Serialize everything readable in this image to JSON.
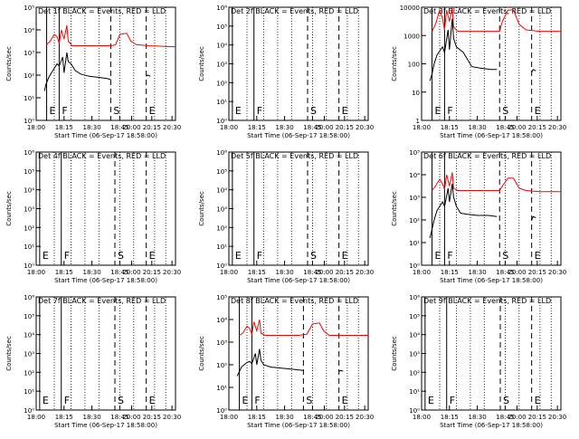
{
  "chart_data": {
    "type": "line",
    "series_colors": {
      "events": "#000000",
      "lld": "#ff0000"
    },
    "xtick_labels": [
      "18:00",
      "18:15",
      "18:30",
      "18:45",
      "20:00",
      "20:15",
      "20:30"
    ],
    "xlabel": "Start Time (06-Sep-17 18:58:00)",
    "ylabel": "Counts/sec",
    "marker_labels": {
      "E": "E",
      "F": "F",
      "S": "S"
    },
    "panels": [
      {
        "title": "Det 1f BLACK = Events, RED = LLD",
        "ylabel": "Counts/sec",
        "xlabel": "Start Time (06-Sep-17 18:58:00)",
        "ylog": [
          0,
          5
        ],
        "ytick_labels": [
          "10⁰",
          "10¹",
          "10²",
          "10³",
          "10⁴",
          "10⁵"
        ],
        "markers": [
          {
            "x": 0.075,
            "label": "E"
          },
          {
            "x": 0.165,
            "label": "F"
          },
          {
            "x": 0.535,
            "label": "S"
          },
          {
            "x": 0.79,
            "label": "E"
          }
        ],
        "events": [
          [
            0.06,
            1.3
          ],
          [
            0.07,
            1.6
          ],
          [
            0.09,
            1.9
          ],
          [
            0.11,
            2.1
          ],
          [
            0.13,
            2.3
          ],
          [
            0.15,
            2.5
          ],
          [
            0.165,
            2.4
          ],
          [
            0.19,
            2.8
          ],
          [
            0.2,
            2.1
          ],
          [
            0.22,
            3.0
          ],
          [
            0.23,
            2.6
          ],
          [
            0.25,
            2.5
          ],
          [
            0.28,
            2.2
          ],
          [
            0.32,
            2.05
          ],
          [
            0.38,
            1.95
          ],
          [
            0.45,
            1.9
          ],
          [
            0.51,
            1.85
          ],
          [
            0.535,
            1.8
          ]
        ],
        "events2": [
          [
            0.79,
            1.95
          ],
          [
            0.8,
            2.0
          ],
          [
            0.82,
            1.95
          ]
        ],
        "lld": [
          [
            0.075,
            3.35
          ],
          [
            0.1,
            3.5
          ],
          [
            0.13,
            3.8
          ],
          [
            0.15,
            3.7
          ],
          [
            0.165,
            3.4
          ],
          [
            0.18,
            4.0
          ],
          [
            0.2,
            3.6
          ],
          [
            0.22,
            4.2
          ],
          [
            0.23,
            3.5
          ],
          [
            0.26,
            3.3
          ],
          [
            0.4,
            3.3
          ],
          [
            0.5,
            3.3
          ],
          [
            0.54,
            3.3
          ],
          [
            0.57,
            3.35
          ],
          [
            0.6,
            3.8
          ],
          [
            0.65,
            3.85
          ],
          [
            0.68,
            3.5
          ],
          [
            0.72,
            3.35
          ],
          [
            0.8,
            3.3
          ],
          [
            1.0,
            3.25
          ]
        ]
      },
      {
        "title": "Det 2f BLACK = Events, RED = LLD",
        "ylabel": "Counts/sec",
        "xlabel": "Start Time (06-Sep-17 18:58:00)",
        "ylog": [
          0,
          6
        ],
        "ytick_labels": [
          "10⁰",
          "10¹",
          "10²",
          "10³",
          "10⁴",
          "10⁵",
          "10⁶"
        ],
        "markers": [
          {
            "x": 0.025,
            "label": "E"
          },
          {
            "x": 0.18,
            "label": "F"
          },
          {
            "x": 0.565,
            "label": "S"
          },
          {
            "x": 0.79,
            "label": "E"
          }
        ],
        "events": [],
        "events2": [],
        "lld": []
      },
      {
        "title": "Det 3f BLACK = Events, RED = LLD",
        "ylabel": "Counts/sec",
        "xlabel": "Start Time (06-Sep-17 18:58:00)",
        "ylog": [
          0,
          4
        ],
        "ytick_labels": [
          "1",
          "10",
          "100",
          "1000",
          "10000"
        ],
        "markers": [
          {
            "x": 0.075,
            "label": "E"
          },
          {
            "x": 0.165,
            "label": "F"
          },
          {
            "x": 0.56,
            "label": "S"
          },
          {
            "x": 0.79,
            "label": "E"
          }
        ],
        "events": [
          [
            0.06,
            1.4
          ],
          [
            0.075,
            1.65
          ],
          [
            0.09,
            2.0
          ],
          [
            0.11,
            2.3
          ],
          [
            0.13,
            2.45
          ],
          [
            0.15,
            2.6
          ],
          [
            0.165,
            2.4
          ],
          [
            0.19,
            3.2
          ],
          [
            0.2,
            2.5
          ],
          [
            0.22,
            3.6
          ],
          [
            0.23,
            2.9
          ],
          [
            0.25,
            2.6
          ],
          [
            0.3,
            2.4
          ],
          [
            0.36,
            1.9
          ],
          [
            0.42,
            1.85
          ],
          [
            0.5,
            1.8
          ],
          [
            0.54,
            1.8
          ]
        ],
        "events2": [
          [
            0.79,
            1.7
          ],
          [
            0.8,
            1.8
          ],
          [
            0.82,
            1.75
          ]
        ],
        "lld": [
          [
            0.075,
            3.15
          ],
          [
            0.1,
            3.4
          ],
          [
            0.13,
            3.9
          ],
          [
            0.15,
            3.6
          ],
          [
            0.165,
            3.2
          ],
          [
            0.18,
            3.9
          ],
          [
            0.2,
            3.5
          ],
          [
            0.22,
            4.0
          ],
          [
            0.23,
            3.3
          ],
          [
            0.26,
            3.15
          ],
          [
            0.45,
            3.15
          ],
          [
            0.56,
            3.15
          ],
          [
            0.58,
            3.5
          ],
          [
            0.62,
            3.9
          ],
          [
            0.66,
            3.9
          ],
          [
            0.7,
            3.4
          ],
          [
            0.75,
            3.2
          ],
          [
            0.85,
            3.15
          ],
          [
            1.0,
            3.15
          ]
        ]
      },
      {
        "title": "Det 4f BLACK = Events, RED = LLD",
        "ylabel": "Counts/sec",
        "xlabel": "Start Time (06-Sep-17 18:58:00)",
        "ylog": [
          0,
          6
        ],
        "ytick_labels": [
          "10⁰",
          "10¹",
          "10²",
          "10³",
          "10⁴",
          "10⁵",
          "10⁶"
        ],
        "markers": [
          {
            "x": 0.025,
            "label": "E"
          },
          {
            "x": 0.18,
            "label": "F"
          },
          {
            "x": 0.565,
            "label": "S"
          },
          {
            "x": 0.79,
            "label": "E"
          }
        ],
        "events": [],
        "events2": [],
        "lld": []
      },
      {
        "title": "Det 5f BLACK = Events, RED = LLD",
        "ylabel": "Counts/sec",
        "xlabel": "Start Time (06-Sep-17 18:58:00)",
        "ylog": [
          0,
          6
        ],
        "ytick_labels": [
          "10⁰",
          "10¹",
          "10²",
          "10³",
          "10⁴",
          "10⁵",
          "10⁶"
        ],
        "markers": [
          {
            "x": 0.025,
            "label": "E"
          },
          {
            "x": 0.18,
            "label": "F"
          },
          {
            "x": 0.565,
            "label": "S"
          },
          {
            "x": 0.79,
            "label": "E"
          }
        ],
        "events": [],
        "events2": [],
        "lld": []
      },
      {
        "title": "Det 6f BLACK = Events, RED = LLD",
        "ylabel": "Counts/sec",
        "xlabel": "Start Time (06-Sep-17 18:58:00)",
        "ylog": [
          0,
          5
        ],
        "ytick_labels": [
          "10⁰",
          "10¹",
          "10²",
          "10³",
          "10⁴",
          "10⁵"
        ],
        "markers": [
          {
            "x": 0.075,
            "label": "E"
          },
          {
            "x": 0.165,
            "label": "F"
          },
          {
            "x": 0.56,
            "label": "S"
          },
          {
            "x": 0.79,
            "label": "E"
          }
        ],
        "events": [
          [
            0.06,
            1.2
          ],
          [
            0.075,
            1.6
          ],
          [
            0.09,
            2.0
          ],
          [
            0.11,
            2.4
          ],
          [
            0.13,
            2.6
          ],
          [
            0.15,
            2.8
          ],
          [
            0.165,
            2.6
          ],
          [
            0.19,
            3.4
          ],
          [
            0.2,
            2.8
          ],
          [
            0.22,
            3.6
          ],
          [
            0.23,
            3.0
          ],
          [
            0.25,
            2.6
          ],
          [
            0.28,
            2.3
          ],
          [
            0.33,
            2.25
          ],
          [
            0.4,
            2.2
          ],
          [
            0.48,
            2.2
          ],
          [
            0.54,
            2.15
          ]
        ],
        "events2": [
          [
            0.79,
            2.0
          ],
          [
            0.8,
            2.15
          ],
          [
            0.82,
            2.1
          ]
        ],
        "lld": [
          [
            0.075,
            3.3
          ],
          [
            0.1,
            3.5
          ],
          [
            0.13,
            3.8
          ],
          [
            0.15,
            3.6
          ],
          [
            0.165,
            3.35
          ],
          [
            0.18,
            4.0
          ],
          [
            0.2,
            3.5
          ],
          [
            0.22,
            4.1
          ],
          [
            0.23,
            3.4
          ],
          [
            0.26,
            3.3
          ],
          [
            0.45,
            3.3
          ],
          [
            0.56,
            3.3
          ],
          [
            0.58,
            3.5
          ],
          [
            0.62,
            3.85
          ],
          [
            0.66,
            3.85
          ],
          [
            0.7,
            3.4
          ],
          [
            0.75,
            3.3
          ],
          [
            0.85,
            3.25
          ],
          [
            1.0,
            3.25
          ]
        ]
      },
      {
        "title": "Det 7f BLACK = Events, RED = LLD",
        "ylabel": "Counts/sec",
        "xlabel": "Start Time (06-Sep-17 18:58:00)",
        "ylog": [
          0,
          6
        ],
        "ytick_labels": [
          "10⁰",
          "10¹",
          "10²",
          "10³",
          "10⁴",
          "10⁵",
          "10⁶"
        ],
        "markers": [
          {
            "x": 0.025,
            "label": "E"
          },
          {
            "x": 0.18,
            "label": "F"
          },
          {
            "x": 0.565,
            "label": "S"
          },
          {
            "x": 0.79,
            "label": "E"
          }
        ],
        "events": [],
        "events2": [],
        "lld": []
      },
      {
        "title": "Det 8f BLACK = Events, RED = LLD",
        "ylabel": "Counts/sec",
        "xlabel": "Start Time (06-Sep-17 18:58:00)",
        "ylog": [
          0,
          5
        ],
        "ytick_labels": [
          "10⁰",
          "10¹",
          "10²",
          "10³",
          "10⁴",
          "10⁵"
        ],
        "markers": [
          {
            "x": 0.075,
            "label": "E"
          },
          {
            "x": 0.165,
            "label": "F"
          },
          {
            "x": 0.535,
            "label": "S"
          },
          {
            "x": 0.79,
            "label": "E"
          }
        ],
        "events": [
          [
            0.06,
            1.5
          ],
          [
            0.075,
            1.7
          ],
          [
            0.09,
            1.9
          ],
          [
            0.11,
            2.0
          ],
          [
            0.13,
            2.1
          ],
          [
            0.15,
            2.15
          ],
          [
            0.165,
            2.05
          ],
          [
            0.19,
            2.5
          ],
          [
            0.2,
            2.0
          ],
          [
            0.22,
            2.7
          ],
          [
            0.23,
            2.2
          ],
          [
            0.25,
            2.0
          ],
          [
            0.3,
            1.9
          ],
          [
            0.38,
            1.85
          ],
          [
            0.46,
            1.8
          ],
          [
            0.535,
            1.75
          ]
        ],
        "events2": [
          [
            0.79,
            1.7
          ],
          [
            0.8,
            1.75
          ],
          [
            0.82,
            1.72
          ]
        ],
        "lld": [
          [
            0.075,
            3.3
          ],
          [
            0.1,
            3.4
          ],
          [
            0.13,
            3.7
          ],
          [
            0.15,
            3.6
          ],
          [
            0.165,
            3.35
          ],
          [
            0.18,
            3.9
          ],
          [
            0.2,
            3.5
          ],
          [
            0.22,
            4.0
          ],
          [
            0.23,
            3.4
          ],
          [
            0.26,
            3.3
          ],
          [
            0.4,
            3.3
          ],
          [
            0.5,
            3.3
          ],
          [
            0.56,
            3.35
          ],
          [
            0.6,
            3.8
          ],
          [
            0.65,
            3.85
          ],
          [
            0.68,
            3.5
          ],
          [
            0.72,
            3.3
          ],
          [
            0.8,
            3.3
          ],
          [
            1.0,
            3.3
          ]
        ]
      },
      {
        "title": "Det 9f BLACK = Events, RED = LLD",
        "ylabel": "Counts/sec",
        "xlabel": "Start Time (06-Sep-17 18:58:00)",
        "ylog": [
          0,
          6
        ],
        "ytick_labels": [
          "10⁰",
          "10¹",
          "10²",
          "10³",
          "10⁴",
          "10⁵",
          "10⁶"
        ],
        "markers": [
          {
            "x": 0.025,
            "label": "E"
          },
          {
            "x": 0.18,
            "label": "F"
          },
          {
            "x": 0.565,
            "label": "S"
          },
          {
            "x": 0.79,
            "label": "E"
          }
        ],
        "events": [],
        "events2": [],
        "lld": []
      }
    ]
  }
}
